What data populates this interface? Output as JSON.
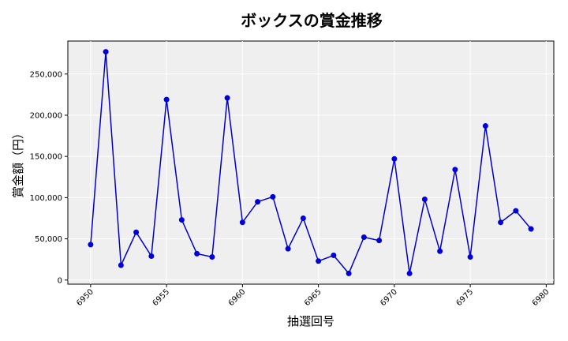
{
  "chart_data": {
    "type": "line",
    "title": "ボックスの賞金推移",
    "xlabel": "抽選回号",
    "ylabel": "賞金額（円）",
    "xlim": [
      6948.5,
      6980.5
    ],
    "ylim": [
      -5000,
      290000
    ],
    "x_ticks": [
      "6950",
      "6955",
      "6960",
      "6965",
      "6970",
      "6975",
      "6980"
    ],
    "y_ticks": [
      "0",
      "50,000",
      "100,000",
      "150,000",
      "200,000",
      "250,000"
    ],
    "grid": true,
    "line_color": "#0000cc",
    "marker_color": "#0000dd",
    "plot_background": "#efefef",
    "series": [
      {
        "x": [
          6950,
          6951,
          6952,
          6953,
          6954,
          6955,
          6956,
          6957,
          6958,
          6959,
          6960,
          6961,
          6962,
          6963,
          6964,
          6965,
          6966,
          6967,
          6968,
          6969,
          6970,
          6971,
          6972,
          6973,
          6974,
          6975,
          6976,
          6977,
          6978,
          6979
        ],
        "values": [
          43000,
          277000,
          18000,
          58000,
          29000,
          219000,
          73000,
          32000,
          28000,
          221000,
          70000,
          95000,
          101000,
          38000,
          75000,
          23000,
          30000,
          8000,
          52000,
          48000,
          147000,
          8000,
          98000,
          35000,
          134000,
          28000,
          187000,
          70000,
          84000,
          62000
        ]
      }
    ]
  }
}
